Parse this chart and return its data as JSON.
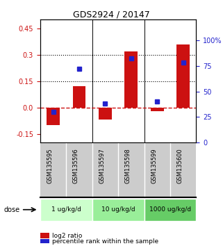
{
  "title": "GDS2924 / 20147",
  "samples": [
    "GSM135595",
    "GSM135596",
    "GSM135597",
    "GSM135598",
    "GSM135599",
    "GSM135600"
  ],
  "log2_ratio": [
    -0.1,
    0.12,
    -0.07,
    0.32,
    -0.02,
    0.36
  ],
  "percentile_rank": [
    30,
    72,
    38,
    82,
    40,
    78
  ],
  "doses": [
    {
      "label": "1 ug/kg/d",
      "samples": [
        0,
        1
      ],
      "color": "#ccffcc"
    },
    {
      "label": "10 ug/kg/d",
      "samples": [
        2,
        3
      ],
      "color": "#99ee99"
    },
    {
      "label": "1000 ug/kg/d",
      "samples": [
        4,
        5
      ],
      "color": "#66cc66"
    }
  ],
  "bar_color": "#cc1111",
  "dot_color": "#2222cc",
  "ylim_left": [
    -0.2,
    0.5
  ],
  "ylim_right": [
    0,
    120
  ],
  "yticks_left": [
    -0.15,
    0.0,
    0.15,
    0.3,
    0.45
  ],
  "yticks_right": [
    0,
    25,
    50,
    75,
    100
  ],
  "ytick_labels_right": [
    "0",
    "25",
    "50",
    "75",
    "100%"
  ],
  "hline_y": 0.0,
  "dotted_lines": [
    0.15,
    0.3
  ],
  "bar_width": 0.5,
  "dose_label": "dose",
  "legend_bar_label": "log2 ratio",
  "legend_dot_label": "percentile rank within the sample",
  "background_color": "#ffffff",
  "sample_area_color": "#cccccc"
}
